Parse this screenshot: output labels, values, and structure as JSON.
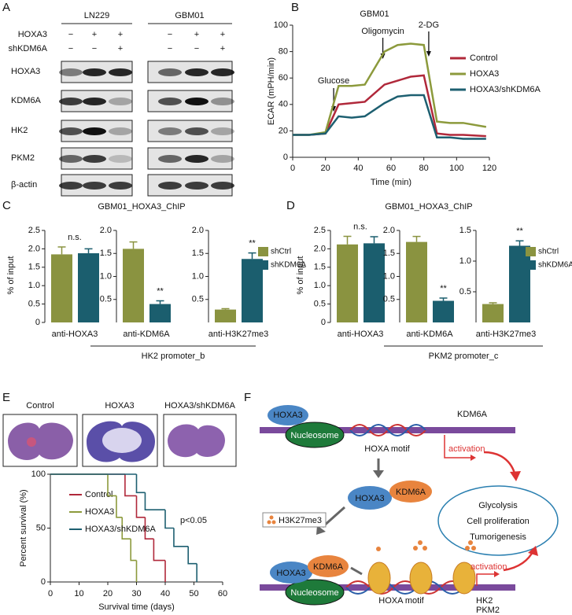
{
  "panel_labels": [
    "A",
    "B",
    "C",
    "D",
    "E",
    "F"
  ],
  "blot": {
    "cell_lines": [
      "LN229",
      "GBM01"
    ],
    "conditions": [
      {
        "name": "HOXA3",
        "signs": [
          "−",
          "+",
          "+",
          "−",
          "+",
          "+"
        ]
      },
      {
        "name": "shKDM6A",
        "signs": [
          "−",
          "−",
          "+",
          "−",
          "−",
          "+"
        ]
      }
    ],
    "rows": [
      "HOXA3",
      "KDM6A",
      "HK2",
      "PKM2",
      "β-actin"
    ]
  },
  "chart_data": [
    {
      "type": "line",
      "title": "GBM01",
      "xlabel": "Time (min)",
      "ylabel": "ECAR (mPH/min)",
      "x": [
        0,
        10,
        20,
        28,
        36,
        44,
        56,
        64,
        72,
        80,
        88,
        96,
        104,
        118
      ],
      "xlim": [
        0,
        120
      ],
      "xticks": [
        0,
        20,
        40,
        60,
        80,
        100,
        120
      ],
      "ylim": [
        0,
        100
      ],
      "yticks": [
        0,
        20,
        40,
        60,
        80,
        100
      ],
      "legend": "upper right",
      "series": [
        {
          "name": "Control",
          "color": "#b0283a",
          "values": [
            17,
            17,
            18,
            40,
            41,
            42,
            55,
            58,
            61,
            62,
            18,
            17,
            17,
            16
          ]
        },
        {
          "name": "HOXA3",
          "color": "#8c9a3c",
          "values": [
            17,
            17,
            19,
            54,
            54,
            55,
            80,
            85,
            86,
            85,
            27,
            26,
            26,
            23
          ]
        },
        {
          "name": "HOXA3/shKDM6A",
          "color": "#1d5f70",
          "values": [
            17,
            17,
            18,
            31,
            30,
            31,
            41,
            46,
            47,
            47,
            15,
            15,
            14,
            14
          ]
        }
      ],
      "annotations": [
        {
          "text": "Glucose",
          "x": 25
        },
        {
          "text": "Oligomycin",
          "x": 55
        },
        {
          "text": "2-DG",
          "x": 83
        }
      ]
    },
    {
      "type": "grouped_bar",
      "title": "GBM01_HOXA3_ChIP",
      "ylabel": "% of input",
      "group_label": "HK2 promoter_b",
      "series": [
        {
          "name": "shCtrl",
          "color": "#8a9340"
        },
        {
          "name": "shKDM6A",
          "color": "#1b5e6e"
        }
      ],
      "panels": [
        {
          "category": "anti-HOXA3",
          "values": [
            1.85,
            1.88
          ],
          "errors": [
            0.2,
            0.12
          ],
          "annotation": "n.s.",
          "ylim": [
            0,
            2.5
          ],
          "yticks": [
            0,
            0.5,
            {
              "value": 1,
              "label": "1.0"
            },
            1.5,
            {
              "value": 2,
              "label": "2.0"
            },
            2.5
          ]
        },
        {
          "category": "anti-KDM6A",
          "values": [
            1.6,
            0.4
          ],
          "errors": [
            0.15,
            0.07
          ],
          "annotation": "**",
          "ylim": [
            0,
            2
          ],
          "yticks": [
            0.5,
            {
              "value": 1,
              "label": "1.0"
            },
            1.5,
            {
              "value": 2,
              "label": "2.0"
            }
          ]
        },
        {
          "category": "anti-H3K27me3",
          "values": [
            0.28,
            1.38
          ],
          "errors": [
            0.02,
            0.13
          ],
          "annotation": "**",
          "ylim": [
            0,
            2
          ],
          "yticks": [
            0.5,
            {
              "value": 1,
              "label": "1.0"
            },
            1.5,
            {
              "value": 2,
              "label": "2.0"
            }
          ]
        }
      ]
    },
    {
      "type": "grouped_bar",
      "title": "GBM01_HOXA3_ChIP",
      "ylabel": "% of input",
      "group_label": "PKM2 promoter_c",
      "series": [
        {
          "name": "shCtrl",
          "color": "#8a9340"
        },
        {
          "name": "shKDM6A",
          "color": "#1b5e6e"
        }
      ],
      "panels": [
        {
          "category": "anti-HOXA3",
          "values": [
            2.12,
            2.15
          ],
          "errors": [
            0.22,
            0.18
          ],
          "annotation": "n.s.",
          "ylim": [
            0,
            2.5
          ],
          "yticks": [
            0,
            0.5,
            {
              "value": 1,
              "label": "1.0"
            },
            1.5,
            {
              "value": 2,
              "label": "2.0"
            },
            2.5
          ]
        },
        {
          "category": "anti-KDM6A",
          "values": [
            1.75,
            0.47
          ],
          "errors": [
            0.12,
            0.06
          ],
          "annotation": "**",
          "ylim": [
            0,
            2
          ],
          "yticks": [
            0.5,
            {
              "value": 1,
              "label": "1.0"
            },
            1.5,
            {
              "value": 2,
              "label": "2.0"
            }
          ]
        },
        {
          "category": "anti-H3K27me3",
          "values": [
            0.3,
            1.25
          ],
          "errors": [
            0.02,
            0.08
          ],
          "annotation": "**",
          "ylim": [
            0,
            1.5
          ],
          "yticks": [
            0.5,
            {
              "value": 1,
              "label": "1.0"
            },
            1.5
          ]
        }
      ]
    },
    {
      "type": "step",
      "xlabel": "Survival time (days)",
      "ylabel": "Percent survival (%)",
      "annotation": "p<0.05",
      "xlim": [
        0,
        60
      ],
      "xticks": [
        0,
        10,
        20,
        30,
        40,
        50,
        60
      ],
      "ylim": [
        0,
        100
      ],
      "yticks": [
        0,
        50,
        100
      ],
      "series": [
        {
          "name": "Control",
          "color": "#b0283a",
          "x": [
            0,
            26,
            30,
            33,
            36,
            40
          ],
          "values": [
            100,
            80,
            60,
            40,
            20,
            0
          ]
        },
        {
          "name": "HOXA3",
          "color": "#8c9a3c",
          "x": [
            0,
            20,
            23,
            25,
            28,
            30
          ],
          "values": [
            100,
            80,
            60,
            40,
            20,
            0
          ]
        },
        {
          "name": "HOXA3/shKDM6A",
          "color": "#1d5f70",
          "x": [
            0,
            30,
            33,
            40,
            43,
            48,
            51
          ],
          "values": [
            100,
            83,
            67,
            50,
            33,
            17,
            0
          ]
        }
      ]
    }
  ],
  "images": {
    "labels": [
      "Control",
      "HOXA3",
      "HOXA3/shKDM6A"
    ]
  },
  "diagram": {
    "top": {
      "hoxa3": "HOXA3",
      "nucleosome": "Nucleosome",
      "motif": "HOXA motif",
      "kdm6a": "KDM6A",
      "activation": "activation"
    },
    "middle": {
      "hoxa3": "HOXA3",
      "kdm6a": "KDM6A",
      "mark": "H3K27me3"
    },
    "outcomes": [
      "Glycolysis",
      "Cell proliferation",
      "Tumorigenesis"
    ],
    "bottom": {
      "hoxa3": "HOXA3",
      "kdm6a": "KDM6A",
      "nucleosome": "Nucleosome",
      "motif": "HOXA motif",
      "activation": "activation",
      "genes": [
        "HK2",
        "PKM2"
      ]
    }
  }
}
